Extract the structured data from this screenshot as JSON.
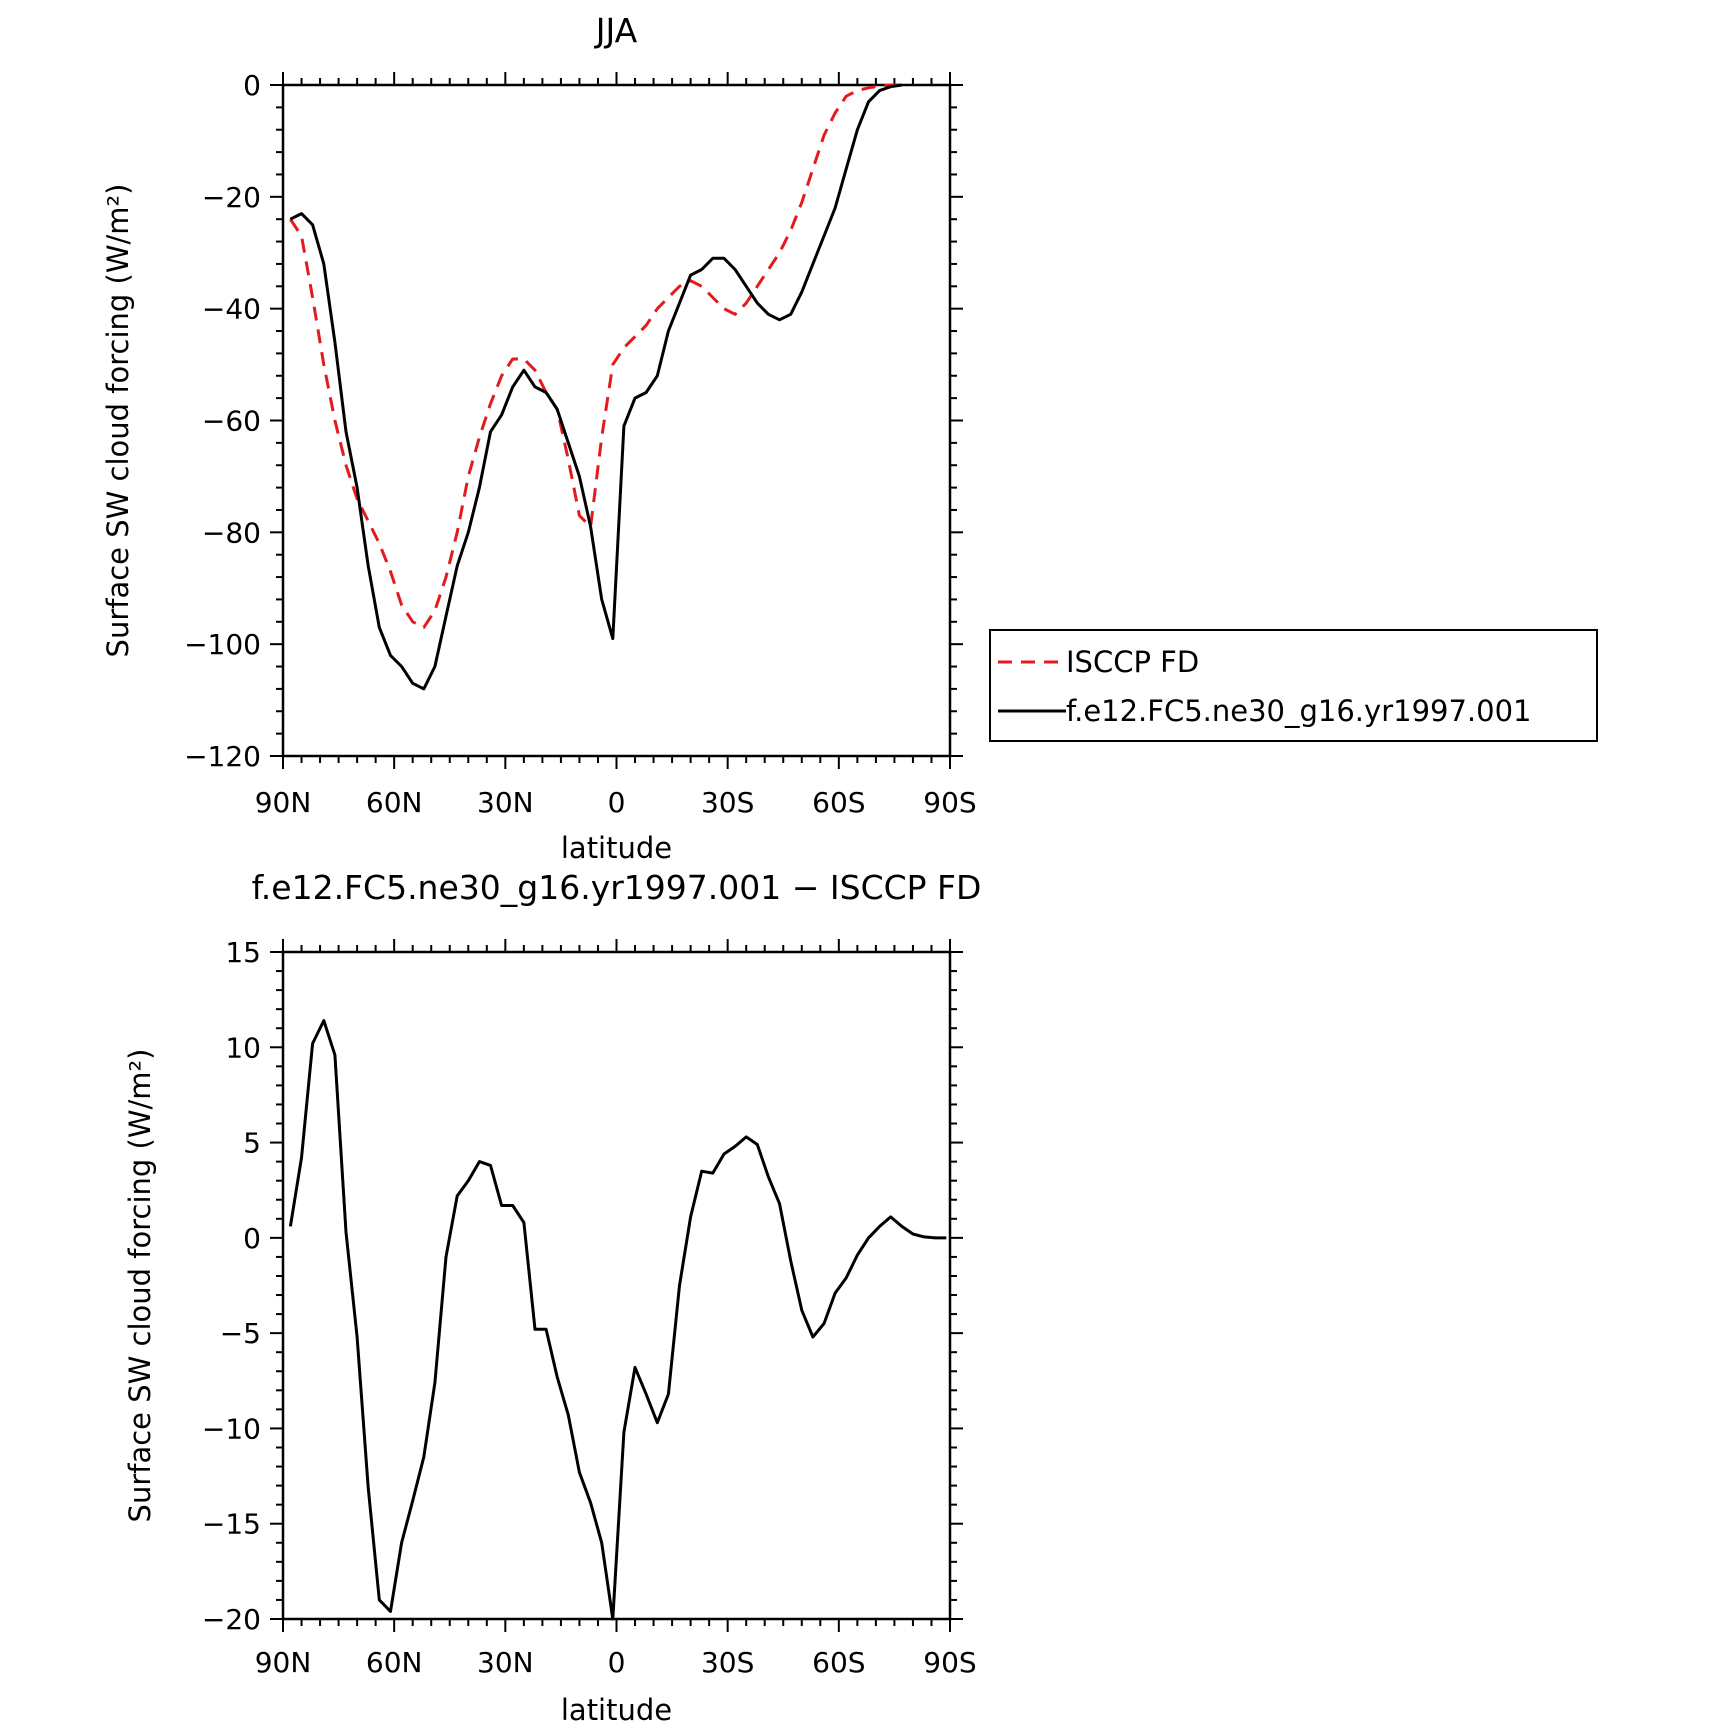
{
  "chart_data": [
    {
      "type": "line",
      "title": "JJA",
      "xlabel": "latitude",
      "ylabel": "Surface SW cloud forcing (W/m²)",
      "xlim": [
        90,
        -90
      ],
      "ylim": [
        -120,
        0
      ],
      "xticks": [
        90,
        60,
        30,
        0,
        -30,
        -60,
        -90
      ],
      "xtick_labels": [
        "90N",
        "60N",
        "30N",
        "0",
        "30S",
        "60S",
        "90S"
      ],
      "yticks": [
        0,
        -20,
        -40,
        -60,
        -80,
        -100,
        -120
      ],
      "ytick_labels": [
        "0",
        "−20",
        "−40",
        "−60",
        "−80",
        "−100",
        "−120"
      ],
      "legend_position": "right",
      "series": [
        {
          "name": "ISCCP FD",
          "color": "#e41a1c",
          "dash": "dashed",
          "x": [
            88,
            85,
            82,
            79,
            76,
            73,
            70,
            67,
            64,
            61,
            58,
            55,
            52,
            49,
            46,
            43,
            40,
            37,
            34,
            31,
            28,
            25,
            22,
            19,
            16,
            13,
            10,
            7,
            4,
            1,
            -2,
            -5,
            -8,
            -11,
            -14,
            -17,
            -20,
            -23,
            -26,
            -29,
            -32,
            -35,
            -38,
            -41,
            -44,
            -47,
            -50,
            -53,
            -56,
            -59,
            -62,
            -65,
            -68,
            -71,
            -74,
            -77
          ],
          "y": [
            -24,
            -27,
            -38,
            -50,
            -60,
            -68,
            -74,
            -78,
            -82,
            -87,
            -93,
            -96,
            -97,
            -94,
            -88,
            -80,
            -70,
            -63,
            -57,
            -52,
            -49,
            -49,
            -51,
            -55,
            -58,
            -67,
            -77,
            -79,
            -63,
            -50,
            -47,
            -45,
            -43,
            -40,
            -38,
            -36,
            -35,
            -36,
            -38,
            -40,
            -41,
            -39,
            -36,
            -33,
            -30,
            -26,
            -21,
            -15,
            -9,
            -5,
            -2,
            -1,
            -0.5,
            -0.2,
            0,
            0
          ]
        },
        {
          "name": "f.e12.FC5.ne30_g16.yr1997.001",
          "color": "#000000",
          "dash": "solid",
          "x": [
            88,
            85,
            82,
            79,
            76,
            73,
            70,
            67,
            64,
            61,
            58,
            55,
            52,
            49,
            46,
            43,
            40,
            37,
            34,
            31,
            28,
            25,
            22,
            19,
            16,
            13,
            10,
            7,
            4,
            1,
            -2,
            -5,
            -8,
            -11,
            -14,
            -17,
            -20,
            -23,
            -26,
            -29,
            -32,
            -35,
            -38,
            -41,
            -44,
            -47,
            -50,
            -53,
            -56,
            -59,
            -62,
            -65,
            -68,
            -71,
            -74,
            -77
          ],
          "y": [
            -24,
            -23,
            -25,
            -32,
            -46,
            -62,
            -72,
            -86,
            -97,
            -102,
            -104,
            -107,
            -108,
            -104,
            -95,
            -86,
            -80,
            -72,
            -62,
            -59,
            -54,
            -51,
            -54,
            -55,
            -58,
            -64,
            -70,
            -79,
            -92,
            -99,
            -61,
            -56,
            -55,
            -52,
            -44,
            -39,
            -34,
            -33,
            -31,
            -31,
            -33,
            -36,
            -39,
            -41,
            -42,
            -41,
            -37,
            -32,
            -27,
            -22,
            -15,
            -8,
            -3,
            -1,
            -0.3,
            0
          ]
        }
      ]
    },
    {
      "type": "line",
      "title": "f.e12.FC5.ne30_g16.yr1997.001 − ISCCP FD",
      "xlabel": "latitude",
      "ylabel": "Surface SW cloud forcing (W/m²)",
      "xlim": [
        90,
        -90
      ],
      "ylim": [
        -20,
        15
      ],
      "xticks": [
        90,
        60,
        30,
        0,
        -30,
        -60,
        -90
      ],
      "xtick_labels": [
        "90N",
        "60N",
        "30N",
        "0",
        "30S",
        "60S",
        "90S"
      ],
      "yticks": [
        15,
        10,
        5,
        0,
        -5,
        -10,
        -15,
        -20
      ],
      "ytick_labels": [
        "15",
        "10",
        "5",
        "0",
        "−5",
        "−10",
        "−15",
        "−20"
      ],
      "series": [
        {
          "color": "#000000",
          "dash": "solid",
          "x": [
            88,
            85,
            82,
            79,
            76,
            73,
            70,
            67,
            64,
            61,
            58,
            55,
            52,
            49,
            46,
            43,
            40,
            37,
            34,
            31,
            28,
            25,
            22,
            19,
            16,
            13,
            10,
            7,
            4,
            1,
            -2,
            -5,
            -8,
            -11,
            -14,
            -17,
            -20,
            -23,
            -26,
            -29,
            -32,
            -35,
            -38,
            -41,
            -44,
            -47,
            -50,
            -53,
            -56,
            -59,
            -62,
            -65,
            -68,
            -71,
            -74,
            -77,
            -80,
            -83,
            -86,
            -89
          ],
          "y": [
            0.6,
            4.2,
            10.2,
            11.4,
            9.6,
            0.3,
            -5.2,
            -13.1,
            -19,
            -19.6,
            -16,
            -13.8,
            -11.5,
            -7.6,
            -1,
            2.2,
            3,
            4,
            3.8,
            1.7,
            1.7,
            0.8,
            -4.8,
            -4.8,
            -7.3,
            -9.3,
            -12.3,
            -13.9,
            -16,
            -20,
            -10.2,
            -6.8,
            -8.2,
            -9.7,
            -8.2,
            -2.5,
            1.1,
            3.5,
            3.4,
            4.4,
            4.8,
            5.3,
            4.9,
            3.2,
            1.8,
            -1.2,
            -3.8,
            -5.2,
            -4.5,
            -2.9,
            -2.1,
            -0.9,
            0,
            0.6,
            1.1,
            0.6,
            0.2,
            0.05,
            0,
            0
          ]
        }
      ]
    }
  ]
}
